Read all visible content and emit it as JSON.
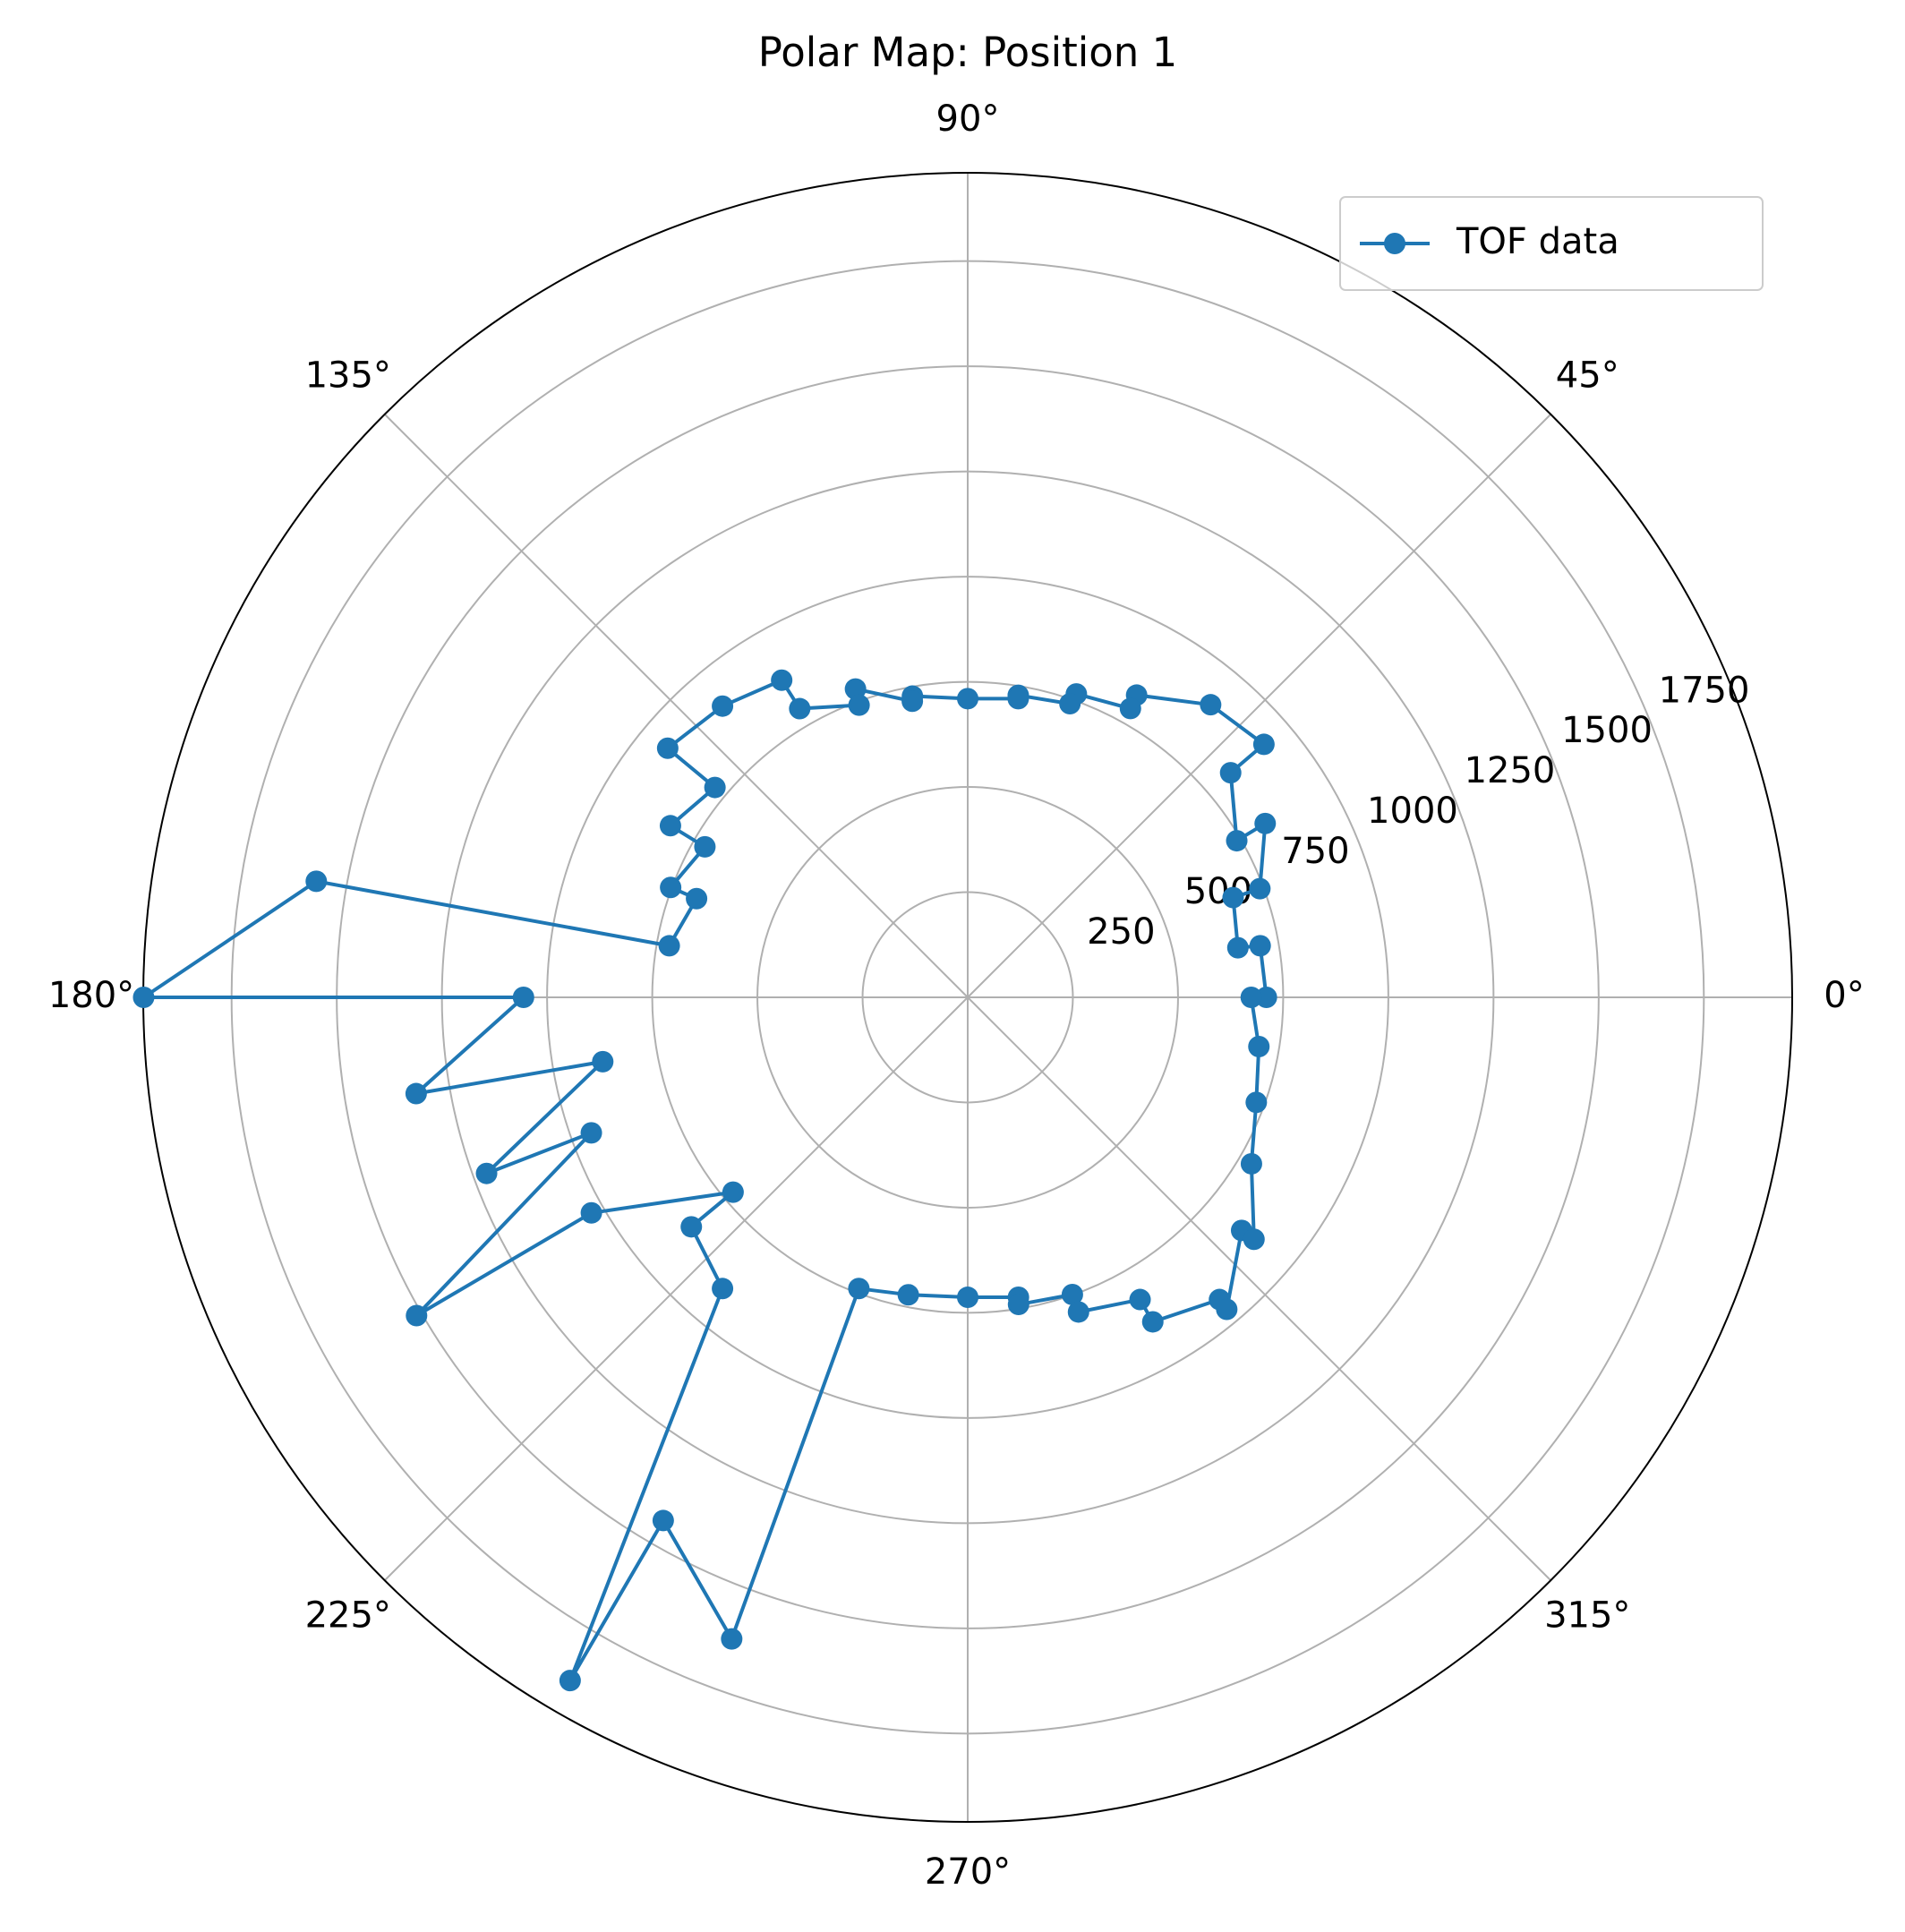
{
  "chart_data": {
    "type": "polar",
    "title": "Polar Map: Position 1",
    "x": [
      0,
      10,
      10.4,
      20.6,
      20.4,
      30.3,
      30.2,
      40.5,
      40.5,
      50.3,
      60.8,
      60.6,
      70.3,
      70.8,
      80.5,
      80.4,
      90,
      100.4,
      100.6,
      110,
      110.4,
      120.2,
      120.4,
      130.1,
      140.3,
      140.3,
      150,
      150.2,
      159.7,
      160,
      170.2,
      169.9,
      180,
      180,
      189.9,
      190,
      200.1,
      199.8,
      210,
      209.8,
      219.7,
      219.7,
      229.9,
      239.8,
      239.8,
      249.8,
      249.5,
      258.7,
      270,
      279.6,
      279.4,
      289.4,
      289.4,
      299.7,
      299.7,
      309.8,
      309.7,
      319.6,
      319.8,
      329.6,
      340,
      350.4,
      360
    ],
    "series": [
      {
        "name": "TOF data",
        "color": "#1f77b4",
        "values": [
          710,
          706,
          653,
          674,
          741,
          819,
          740,
          822,
          926,
          904,
          823,
          788,
          766,
          739,
          728,
          720,
          710,
          728,
          716,
          780,
          741,
          794,
          874,
          905,
          927,
          781,
          816,
          720,
          753,
          686,
          720,
          1573,
          1959,
          1056,
          1331,
          881,
          1218,
          951,
          1513,
          1031,
          725,
          854,
          905,
          1879,
          1439,
          1625,
          739,
          721,
          713,
          723,
          740,
          749,
          793,
          827,
          888,
          935,
          964,
          855,
          891,
          782,
          730,
          702,
          674
        ]
      }
    ],
    "ylim": [
      0,
      1960
    ],
    "yticks": [
      250,
      500,
      750,
      1000,
      1250,
      1500,
      1750
    ],
    "xticks": [
      {
        "value": 0,
        "label": "0°"
      },
      {
        "value": 45,
        "label": "45°"
      },
      {
        "value": 90,
        "label": "90°"
      },
      {
        "value": 135,
        "label": "135°"
      },
      {
        "value": 180,
        "label": "180°"
      },
      {
        "value": 225,
        "label": "225°"
      },
      {
        "value": 270,
        "label": "270°"
      },
      {
        "value": 315,
        "label": "315°"
      }
    ],
    "grid": true,
    "legend": "upper right"
  }
}
